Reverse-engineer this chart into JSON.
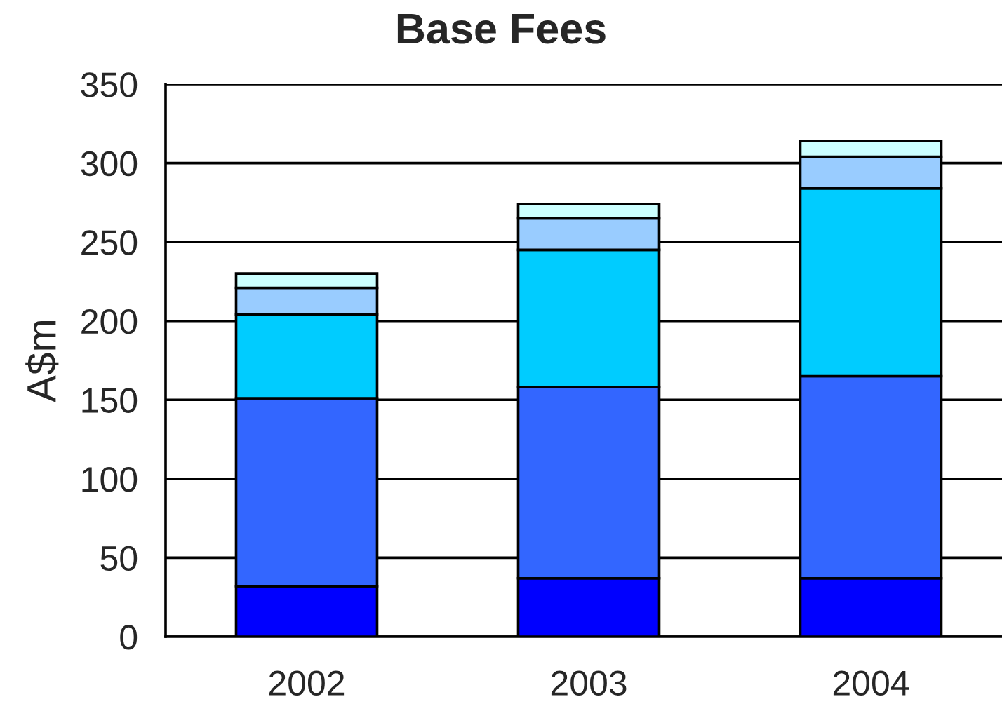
{
  "chart_data": {
    "type": "bar",
    "title": "Base Fees",
    "ylabel": "A$m",
    "categories": [
      "2002",
      "2003",
      "2004"
    ],
    "stacked": true,
    "series": [
      {
        "color": "#0000ff",
        "values": [
          32,
          37,
          37
        ]
      },
      {
        "color": "#3366ff",
        "values": [
          119,
          121,
          128
        ]
      },
      {
        "color": "#00ccff",
        "values": [
          53,
          87,
          119
        ]
      },
      {
        "color": "#99ccff",
        "values": [
          17,
          20,
          20
        ]
      },
      {
        "color": "#ccffff",
        "values": [
          9,
          9,
          10
        ]
      }
    ],
    "ylim": [
      0,
      350
    ],
    "yticks": [
      0,
      50,
      100,
      150,
      200,
      250,
      300,
      350
    ],
    "grid": "y"
  }
}
